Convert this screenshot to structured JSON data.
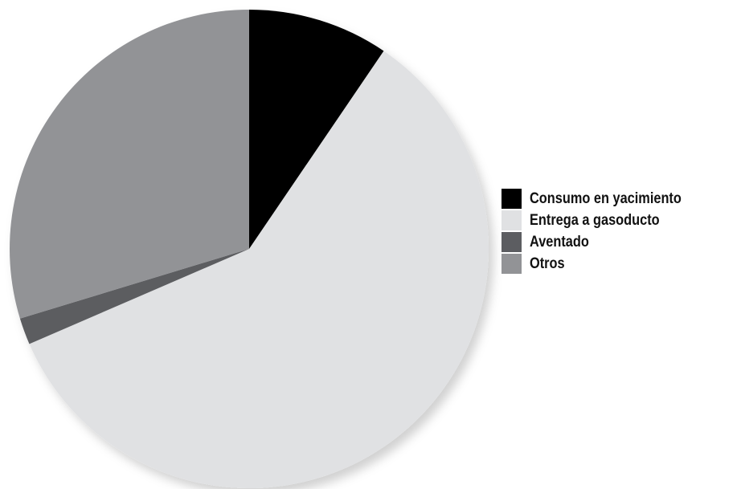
{
  "chart_data": {
    "type": "pie",
    "title": "",
    "legend_position": "right",
    "slices": [
      {
        "label": "Consumo en yacimiento",
        "value": 9.5,
        "color": "#000000"
      },
      {
        "label": "Entrega a gasoducto",
        "value": 59.0,
        "color": "#e0e1e3"
      },
      {
        "label": "Aventado",
        "value": 1.8,
        "color": "#5c5d61"
      },
      {
        "label": "Otros",
        "value": 29.7,
        "color": "#929396"
      }
    ]
  }
}
